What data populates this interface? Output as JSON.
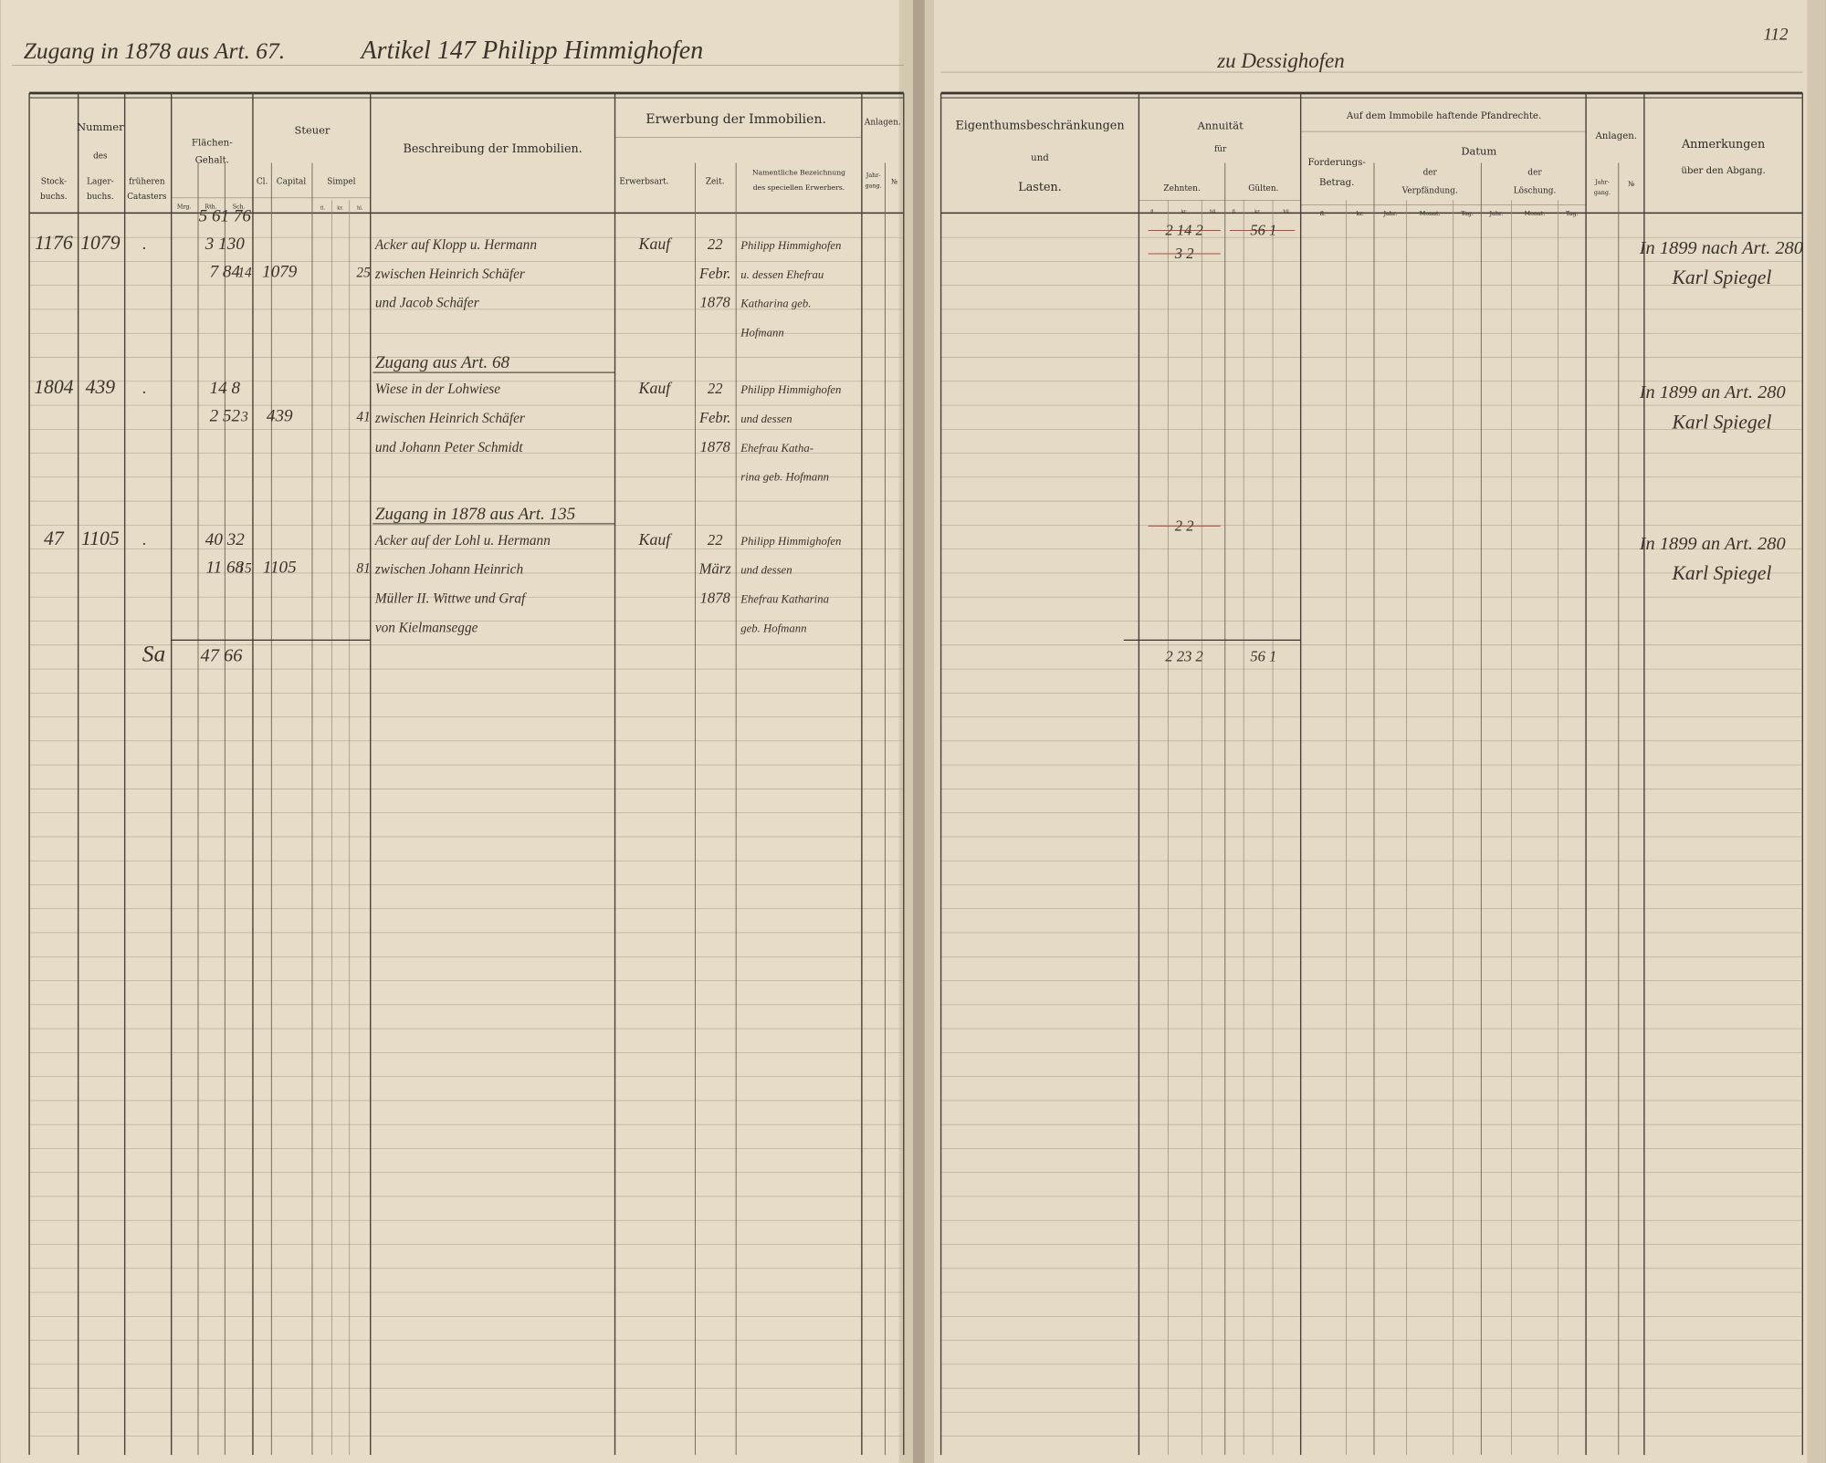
{
  "left_page": {
    "heading_left": "Zugang in 1878 aus Art. 67.",
    "heading_right": "Artikel 147 Philipp Himmighofen",
    "headers": [
      "Nummer",
      "des",
      "Stock-",
      "buchs.",
      "Lager-",
      "buchs.",
      "früheren",
      "Catasters",
      "Flächen-",
      "Gehalt.",
      "Mrg.",
      "Rth.",
      "Sch.",
      "Steuer",
      "Cl.",
      "Capital",
      "Simpel",
      "fl.",
      "kr.",
      "hl.",
      "Beschreibung der Immobilien.",
      "Erwerbung der Immobilien.",
      "Erwerbsart.",
      "Zeit.",
      "Namentliche Bezeichnung",
      "des speciellen Erwerbers.",
      "Anlagen.",
      "Jahr-",
      "gang.",
      "№"
    ],
    "entries": [
      {
        "stockbuch": "1176",
        "lagerbuch": "1079",
        "frueher": ".",
        "flaeche": [
          "5 61 76",
          "3 130",
          "7 84"
        ],
        "steuer_cl": "14",
        "steuer_capital": "1079",
        "steuer_simpel": "25",
        "beschreibung": [
          "Acker auf Klopp u. Hermann",
          "zwischen Heinrich Schäfer",
          "und Jacob Schäfer"
        ],
        "erwerbsart": "Kauf",
        "zeit": [
          "22",
          "Febr.",
          "1878"
        ],
        "erwerber": [
          "Philipp Himmighofen",
          "u. dessen Ehefrau",
          "Katharina geb.",
          "Hofmann"
        ]
      },
      {
        "subheading": "Zugang aus Art. 68",
        "stockbuch": "1804",
        "lagerbuch": "439",
        "frueher": ".",
        "flaeche": [
          "14 8",
          "2 52"
        ],
        "steuer_cl": "3",
        "steuer_capital": "439",
        "steuer_simpel": "41",
        "beschreibung": [
          "Wiese in der Lohwiese",
          "zwischen Heinrich Schäfer",
          "und Johann Peter Schmidt"
        ],
        "erwerbsart": "Kauf",
        "zeit": [
          "22",
          "Febr.",
          "1878"
        ],
        "erwerber": [
          "Philipp Himmighofen",
          "und dessen",
          "Ehefrau Katha-",
          "rina geb. Hofmann"
        ]
      },
      {
        "subheading": "Zugang in 1878 aus Art. 135",
        "stockbuch": "47",
        "lagerbuch": "1105",
        "frueher": ".",
        "flaeche": [
          "40 32",
          "11 68"
        ],
        "steuer_cl": "15",
        "steuer_capital": "1105",
        "steuer_simpel": "81",
        "beschreibung": [
          "Acker auf der Lohl u. Hermann",
          "zwischen Johann Heinrich",
          "Müller II. Wittwe und Graf",
          "von Kielmansegge"
        ],
        "erwerbsart": "Kauf",
        "zeit": [
          "22",
          "März",
          "1878"
        ],
        "erwerber": [
          "Philipp Himmighofen",
          "und dessen",
          "Ehefrau Katharina",
          "geb. Hofmann"
        ]
      }
    ],
    "total_label": "Sa",
    "total_flaeche": "47 66"
  },
  "right_page": {
    "page_number": "112",
    "heading": "zu Dessighofen",
    "headers": [
      "Eigenthumsbeschränkungen",
      "und",
      "Lasten.",
      "Annuität",
      "für",
      "Zehnten.",
      "Gülten.",
      "fl.",
      "kr.",
      "hll.",
      "fl.",
      "kr.",
      "hll.",
      "Auf dem Immobile haftende Pfandrechte.",
      "Forderungs-",
      "Betrag.",
      "fl.",
      "kr.",
      "Datum",
      "der",
      "Verpfändung.",
      "der",
      "Löschung.",
      "Jahr.",
      "Monat.",
      "Tag.",
      "Jahr.",
      "Monat.",
      "Tag.",
      "Anlagen.",
      "Jahr-",
      "gang.",
      "№",
      "Anmerkungen",
      "über den Abgang."
    ],
    "entries": [
      {
        "zehnten": [
          "2 14 2",
          "3 2"
        ],
        "gueelten": "56 1",
        "anmerkung": [
          "In 1899 nach Art. 280",
          "Karl Spiegel"
        ]
      },
      {
        "anmerkung": [
          "In 1899 an Art. 280",
          "Karl Spiegel"
        ]
      },
      {
        "zehnten": [
          "2 2"
        ],
        "anmerkung": [
          "In 1899 an Art. 280",
          "Karl Spiegel"
        ]
      }
    ],
    "total_zehnten": "2 23 2",
    "total_gueelten": "56 1"
  }
}
